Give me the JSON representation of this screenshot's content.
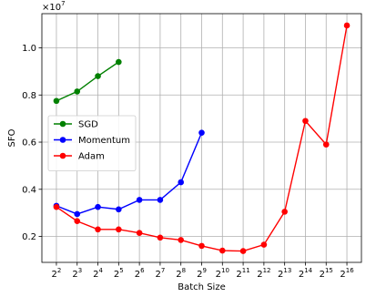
{
  "chart_data": {
    "type": "line",
    "xlabel": "Batch Size",
    "ylabel": "SFO",
    "y_multiplier": {
      "base": "×10",
      "exp": "7"
    },
    "x_scale": "log2",
    "x_ticks": [
      {
        "base": "2",
        "exp": "2",
        "value": 4
      },
      {
        "base": "2",
        "exp": "3",
        "value": 8
      },
      {
        "base": "2",
        "exp": "4",
        "value": 16
      },
      {
        "base": "2",
        "exp": "5",
        "value": 32
      },
      {
        "base": "2",
        "exp": "6",
        "value": 64
      },
      {
        "base": "2",
        "exp": "7",
        "value": 128
      },
      {
        "base": "2",
        "exp": "8",
        "value": 256
      },
      {
        "base": "2",
        "exp": "9",
        "value": 512
      },
      {
        "base": "2",
        "exp": "10",
        "value": 1024
      },
      {
        "base": "2",
        "exp": "11",
        "value": 2048
      },
      {
        "base": "2",
        "exp": "12",
        "value": 4096
      },
      {
        "base": "2",
        "exp": "13",
        "value": 8192
      },
      {
        "base": "2",
        "exp": "14",
        "value": 16384
      },
      {
        "base": "2",
        "exp": "15",
        "value": 32768
      },
      {
        "base": "2",
        "exp": "16",
        "value": 65536
      }
    ],
    "y_ticks": [
      {
        "label": "0.2",
        "value": 0.2
      },
      {
        "label": "0.4",
        "value": 0.4
      },
      {
        "label": "0.6",
        "value": 0.6
      },
      {
        "label": "0.8",
        "value": 0.8
      },
      {
        "label": "1.0",
        "value": 1.0
      }
    ],
    "ylim": [
      0.09,
      1.145
    ],
    "xlim_exp": [
      1.3,
      16.7
    ],
    "grid": true,
    "legend_position": "center-left",
    "series": [
      {
        "name": "SGD",
        "color": "#008000",
        "x": [
          4,
          8,
          16,
          32
        ],
        "y": [
          0.775,
          0.815,
          0.88,
          0.94
        ]
      },
      {
        "name": "Momentum",
        "color": "#0000ff",
        "x": [
          4,
          8,
          16,
          32,
          64,
          128,
          256,
          512
        ],
        "y": [
          0.33,
          0.295,
          0.325,
          0.315,
          0.355,
          0.355,
          0.43,
          0.64
        ]
      },
      {
        "name": "Adam",
        "color": "#ff0000",
        "x": [
          4,
          8,
          16,
          32,
          64,
          128,
          256,
          512,
          1024,
          2048,
          4096,
          8192,
          16384,
          32768,
          65536
        ],
        "y": [
          0.325,
          0.265,
          0.23,
          0.23,
          0.215,
          0.195,
          0.185,
          0.16,
          0.14,
          0.138,
          0.165,
          0.305,
          0.69,
          0.59,
          1.095
        ]
      }
    ]
  }
}
